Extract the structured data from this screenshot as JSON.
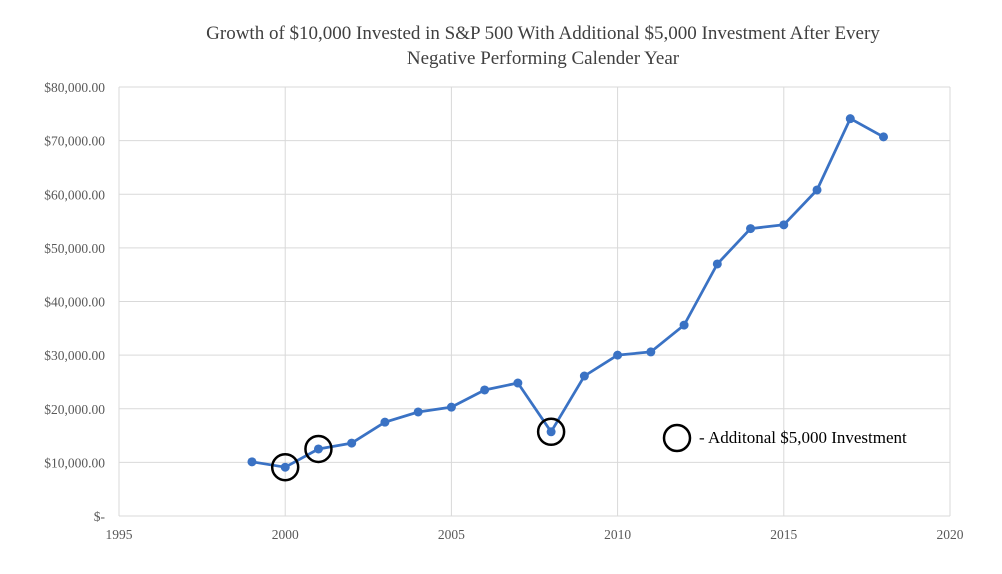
{
  "chart_data": {
    "type": "line",
    "title_lines": [
      "Growth of $10,000 Invested in S&P 500 With Additional $5,000 Investment After Every",
      "Negative Performing Calender Year"
    ],
    "xlabel": "",
    "ylabel": "",
    "xlim": [
      1995,
      2020
    ],
    "ylim": [
      0,
      80000
    ],
    "x_ticks": [
      1995,
      2000,
      2005,
      2010,
      2015,
      2020
    ],
    "x_tick_labels": [
      "1995",
      "2000",
      "2005",
      "2010",
      "2015",
      "2020"
    ],
    "y_ticks": [
      0,
      10000,
      20000,
      30000,
      40000,
      50000,
      60000,
      70000,
      80000
    ],
    "y_tick_labels": [
      "$-",
      "$10,000.00",
      "$20,000.00",
      "$30,000.00",
      "$40,000.00",
      "$50,000.00",
      "$60,000.00",
      "$70,000.00",
      "$80,000.00"
    ],
    "grid": true,
    "series": [
      {
        "color": "#3a72c4",
        "x": [
          1999,
          2000,
          2001,
          2002,
          2003,
          2004,
          2005,
          2006,
          2007,
          2008,
          2009,
          2010,
          2011,
          2012,
          2013,
          2014,
          2015,
          2016,
          2017,
          2018
        ],
        "y": [
          10100,
          9100,
          12500,
          13600,
          17500,
          19400,
          20300,
          23500,
          24800,
          15700,
          26100,
          30000,
          30600,
          35600,
          47000,
          53600,
          54300,
          60800,
          74100,
          70700
        ]
      }
    ],
    "highlighted_points": [
      {
        "x": 2000,
        "y": 9100
      },
      {
        "x": 2001,
        "y": 12500
      },
      {
        "x": 2008,
        "y": 15700
      }
    ],
    "annotation": {
      "text": "- Additonal $5,000 Investment"
    }
  }
}
